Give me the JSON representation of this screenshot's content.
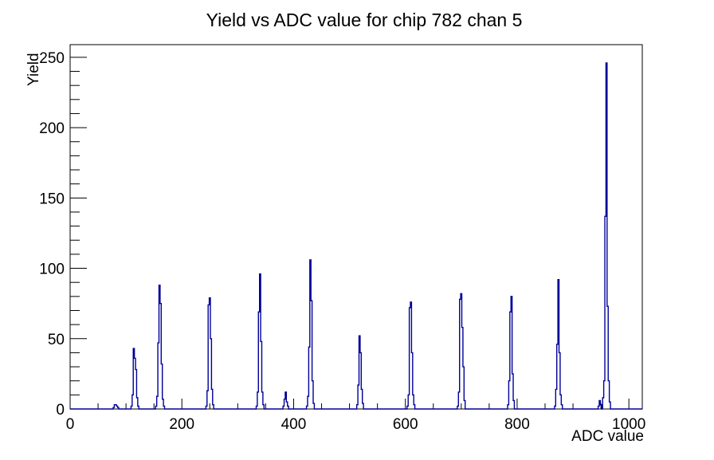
{
  "page": {
    "background_color": "#ffffff",
    "foreground_color": "#000000"
  },
  "chart_data": {
    "type": "line",
    "subtype": "histogram-step-line",
    "title": "Yield vs ADC value for chip 782 chan 5",
    "xlabel": "ADC value",
    "ylabel": "Yield",
    "xlim": [
      0,
      1024
    ],
    "ylim": [
      0,
      259
    ],
    "grid": false,
    "legend": false,
    "line_color": "#000099",
    "axis_color": "#000000",
    "x_major_tick_labels": [
      "0",
      "200",
      "400",
      "600",
      "800",
      "1000"
    ],
    "x_major_tick_values": [
      0,
      200,
      400,
      600,
      800,
      1000
    ],
    "x_minor_step": 50,
    "y_major_tick_labels": [
      "0",
      "50",
      "100",
      "150",
      "200",
      "250"
    ],
    "y_major_tick_values": [
      0,
      50,
      100,
      150,
      200,
      250
    ],
    "y_minor_step": 10,
    "peaks": [
      {
        "adc": 83,
        "yield": 3
      },
      {
        "adc": 116,
        "yield": 43
      },
      {
        "adc": 160,
        "yield": 88
      },
      {
        "adc": 250,
        "yield": 79
      },
      {
        "adc": 340,
        "yield": 96
      },
      {
        "adc": 386,
        "yield": 12
      },
      {
        "adc": 430,
        "yield": 106
      },
      {
        "adc": 519,
        "yield": 52
      },
      {
        "adc": 610,
        "yield": 76
      },
      {
        "adc": 700,
        "yield": 82
      },
      {
        "adc": 790,
        "yield": 80
      },
      {
        "adc": 874,
        "yield": 92
      },
      {
        "adc": 960,
        "yield": 246
      }
    ],
    "bin_width": 2,
    "bins": [
      [
        78,
        1
      ],
      [
        80,
        3
      ],
      [
        82,
        3
      ],
      [
        84,
        2
      ],
      [
        86,
        1
      ],
      [
        110,
        2
      ],
      [
        112,
        10
      ],
      [
        114,
        43
      ],
      [
        116,
        36
      ],
      [
        118,
        28
      ],
      [
        120,
        8
      ],
      [
        122,
        2
      ],
      [
        154,
        2
      ],
      [
        156,
        9
      ],
      [
        158,
        47
      ],
      [
        160,
        88
      ],
      [
        162,
        75
      ],
      [
        164,
        32
      ],
      [
        166,
        7
      ],
      [
        168,
        2
      ],
      [
        244,
        2
      ],
      [
        246,
        13
      ],
      [
        248,
        74
      ],
      [
        250,
        79
      ],
      [
        252,
        50
      ],
      [
        254,
        14
      ],
      [
        256,
        3
      ],
      [
        334,
        2
      ],
      [
        336,
        12
      ],
      [
        338,
        69
      ],
      [
        340,
        96
      ],
      [
        342,
        48
      ],
      [
        344,
        12
      ],
      [
        346,
        3
      ],
      [
        382,
        2
      ],
      [
        384,
        7
      ],
      [
        386,
        12
      ],
      [
        388,
        5
      ],
      [
        390,
        2
      ],
      [
        424,
        2
      ],
      [
        426,
        9
      ],
      [
        428,
        44
      ],
      [
        430,
        106
      ],
      [
        432,
        77
      ],
      [
        434,
        20
      ],
      [
        436,
        4
      ],
      [
        514,
        3
      ],
      [
        516,
        17
      ],
      [
        518,
        52
      ],
      [
        520,
        40
      ],
      [
        522,
        14
      ],
      [
        524,
        4
      ],
      [
        604,
        2
      ],
      [
        606,
        10
      ],
      [
        608,
        72
      ],
      [
        610,
        76
      ],
      [
        612,
        40
      ],
      [
        614,
        10
      ],
      [
        616,
        3
      ],
      [
        694,
        2
      ],
      [
        696,
        12
      ],
      [
        698,
        78
      ],
      [
        700,
        82
      ],
      [
        702,
        58
      ],
      [
        704,
        30
      ],
      [
        706,
        6
      ],
      [
        784,
        3
      ],
      [
        786,
        20
      ],
      [
        788,
        69
      ],
      [
        790,
        80
      ],
      [
        792,
        25
      ],
      [
        794,
        6
      ],
      [
        868,
        2
      ],
      [
        870,
        14
      ],
      [
        872,
        46
      ],
      [
        874,
        92
      ],
      [
        876,
        40
      ],
      [
        878,
        10
      ],
      [
        880,
        3
      ],
      [
        946,
        2
      ],
      [
        948,
        6
      ],
      [
        950,
        3
      ],
      [
        954,
        8
      ],
      [
        956,
        20
      ],
      [
        958,
        137
      ],
      [
        960,
        246
      ],
      [
        962,
        73
      ],
      [
        964,
        20
      ],
      [
        966,
        5
      ]
    ]
  }
}
